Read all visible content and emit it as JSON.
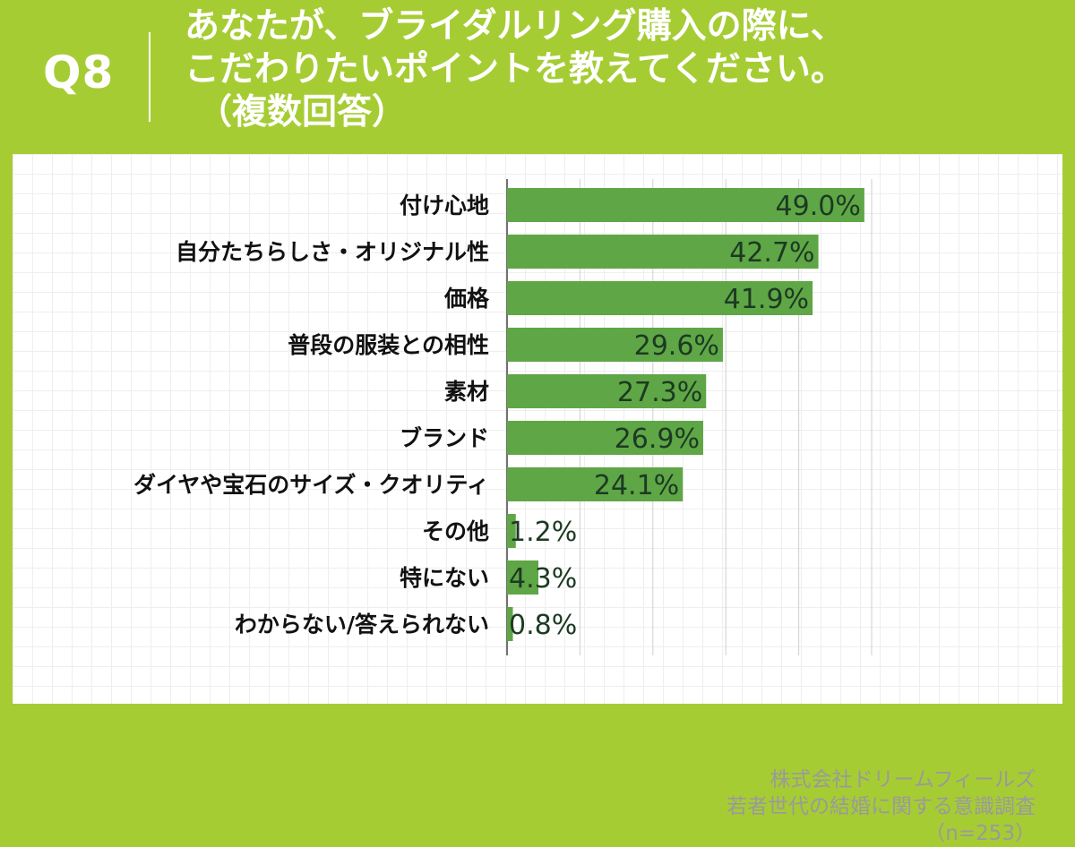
{
  "header": {
    "qnum": "Q8",
    "title_line1": "あなたが、ブライダルリング購入の際に、",
    "title_line2": "こだわりたいポイントを教えてください。",
    "title_line3": "（複数回答）"
  },
  "credit": {
    "line1": "株式会社ドリームフィールズ",
    "line2": "若者世代の結婚に関する意識調査",
    "line3": "（n=253）"
  },
  "colors": {
    "background": "#a6cc34",
    "bar": "#5fa646",
    "value_text": "#1c3a22"
  },
  "chart_data": {
    "type": "bar",
    "orientation": "horizontal",
    "categories": [
      "付け心地",
      "自分たちらしさ・オリジナル性",
      "価格",
      "普段の服装との相性",
      "素材",
      "ブランド",
      "ダイヤや宝石のサイズ・クオリティ",
      "その他",
      "特にない",
      "わからない/答えられない"
    ],
    "values": [
      49.0,
      42.7,
      41.9,
      29.6,
      27.3,
      26.9,
      24.1,
      1.2,
      4.3,
      0.8
    ],
    "value_labels": [
      "49.0%",
      "42.7%",
      "41.9%",
      "29.6%",
      "27.3%",
      "26.9%",
      "24.1%",
      "1.2%",
      "4.3%",
      "0.8%"
    ],
    "xlim": [
      0,
      50
    ],
    "grid": true,
    "title": "",
    "xlabel": "",
    "ylabel": ""
  }
}
